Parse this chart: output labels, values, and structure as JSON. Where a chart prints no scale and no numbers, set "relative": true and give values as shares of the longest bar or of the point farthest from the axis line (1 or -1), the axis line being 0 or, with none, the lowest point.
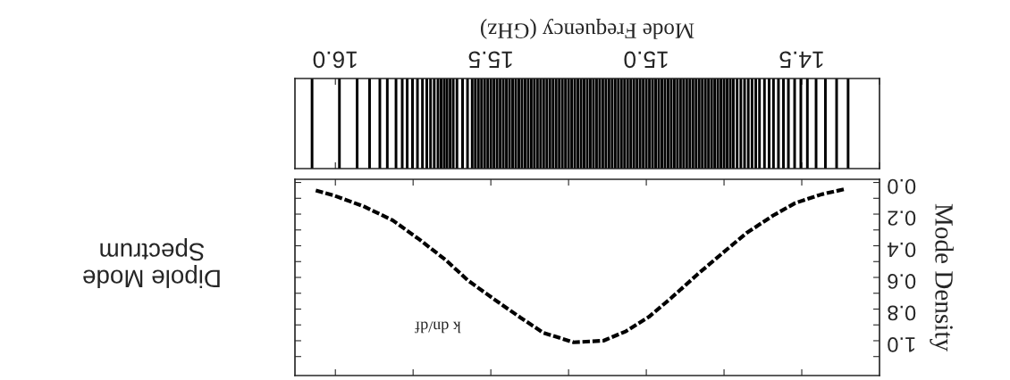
{
  "chart_data": [
    {
      "type": "bar",
      "relative": true,
      "xlabel": "Mode Frequency (GHz)",
      "xlim": [
        16.13,
        14.25
      ],
      "xticks": [
        {
          "value": 14.25,
          "label": null
        },
        14.5,
        {
          "value": 14.75,
          "label": null
        },
        {
          "value": 15,
          "label": "15.0"
        },
        {
          "value": 15.25,
          "label": null
        },
        15.5,
        {
          "value": 15.75,
          "label": null
        },
        {
          "value": 16,
          "label": "16.0"
        }
      ],
      "tick_labels": "x",
      "x": [
        16.075,
        15.987,
        15.93,
        15.89,
        15.857,
        15.833,
        15.805,
        15.785,
        15.769,
        15.752,
        15.736,
        15.72,
        15.706,
        15.694,
        15.682,
        15.67,
        15.66,
        15.65,
        15.641,
        15.631,
        15.621,
        15.609,
        15.591,
        15.575,
        15.56,
        15.55,
        15.54,
        15.53,
        15.52,
        15.51,
        15.5,
        15.49,
        15.48,
        15.47,
        15.46,
        15.45,
        15.44,
        15.43,
        15.42,
        15.41,
        15.4,
        15.39,
        15.38,
        15.37,
        15.36,
        15.35,
        15.34,
        15.33,
        15.32,
        15.31,
        15.3,
        15.29,
        15.28,
        15.27,
        15.26,
        15.25,
        15.24,
        15.23,
        15.22,
        15.21,
        15.2,
        15.19,
        15.18,
        15.17,
        15.16,
        15.15,
        15.14,
        15.13,
        15.12,
        15.11,
        15.1,
        15.09,
        15.08,
        15.07,
        15.06,
        15.05,
        15.04,
        15.03,
        15.02,
        15.01,
        15.0,
        14.99,
        14.98,
        14.97,
        14.96,
        14.95,
        14.94,
        14.93,
        14.92,
        14.91,
        14.9,
        14.89,
        14.88,
        14.87,
        14.86,
        14.85,
        14.84,
        14.83,
        14.82,
        14.81,
        14.8,
        14.79,
        14.78,
        14.77,
        14.76,
        14.75,
        14.74,
        14.73,
        14.72,
        14.708,
        14.696,
        14.684,
        14.672,
        14.66,
        14.648,
        14.636,
        14.62,
        14.605,
        14.591,
        14.575,
        14.559,
        14.543,
        14.523,
        14.503,
        14.482,
        14.454,
        14.424,
        14.388,
        14.351
      ],
      "series": [
        {
          "color": "#000000",
          "values": [
            1,
            1,
            1,
            1,
            1,
            1,
            1,
            1,
            1,
            1,
            1,
            1,
            1,
            1,
            1,
            1,
            1,
            1,
            1,
            1,
            1,
            1,
            1,
            1,
            1,
            1,
            1,
            1,
            1,
            1,
            1,
            1,
            1,
            1,
            1,
            1,
            1,
            1,
            1,
            1,
            1,
            1,
            1,
            1,
            1,
            1,
            1,
            1,
            1,
            1,
            1,
            1,
            1,
            1,
            1,
            1,
            1,
            1,
            1,
            1,
            1,
            1,
            1,
            1,
            1,
            1,
            1,
            1,
            1,
            1,
            1,
            1,
            1,
            1,
            1,
            1,
            1,
            1,
            1,
            1,
            1,
            1,
            1,
            1,
            1,
            1,
            1,
            1,
            1,
            1,
            1,
            1,
            1,
            1,
            1,
            1,
            1,
            1,
            1,
            1,
            1,
            1,
            1,
            1,
            1,
            1,
            1,
            1,
            1,
            1,
            1,
            1,
            1,
            1,
            1,
            1,
            1,
            1,
            1,
            1,
            1,
            1,
            1,
            1,
            1,
            1,
            1,
            1,
            1
          ]
        }
      ]
    },
    {
      "type": "line",
      "ylabel": "Mode Density",
      "xlim": [
        16.13,
        14.25
      ],
      "ylim": [
        1.22,
        -0.02
      ],
      "xticks": [
        {
          "value": 14.5,
          "label": null
        },
        {
          "value": 14.75,
          "label": null
        },
        {
          "value": 15.0,
          "label": null
        },
        {
          "value": 15.25,
          "label": null
        },
        {
          "value": 15.5,
          "label": null
        },
        {
          "value": 15.75,
          "label": null
        },
        {
          "value": 16.0,
          "label": null
        }
      ],
      "yticks": [
        {
          "value": 0,
          "label": "0.0"
        },
        {
          "value": 0.1,
          "label": null
        },
        0.2,
        {
          "value": 0.3,
          "label": null
        },
        0.4,
        {
          "value": 0.5,
          "label": null
        },
        0.6,
        {
          "value": 0.7,
          "label": null
        },
        0.8,
        {
          "value": 0.9,
          "label": null
        },
        {
          "value": 1,
          "label": "1.0"
        },
        {
          "value": 1.1,
          "label": null
        }
      ],
      "tick_labels": "y",
      "line_style": "dashed",
      "x": [
        16.063,
        16.008,
        15.91,
        15.815,
        15.73,
        15.645,
        15.573,
        15.488,
        15.404,
        15.331,
        15.234,
        15.138,
        15.065,
        14.992,
        14.92,
        14.835,
        14.751,
        14.678,
        14.593,
        14.521,
        14.436,
        14.357
      ],
      "series": [
        {
          "color": "#000000",
          "values": [
            0.05,
            0.08,
            0.15,
            0.24,
            0.36,
            0.49,
            0.62,
            0.74,
            0.855,
            0.95,
            1.01,
            1.0,
            0.94,
            0.85,
            0.73,
            0.58,
            0.44,
            0.32,
            0.21,
            0.13,
            0.075,
            0.04
          ]
        }
      ],
      "annotations": [
        "k dn/df",
        "Dipole Mode\nSpectrum"
      ]
    }
  ]
}
